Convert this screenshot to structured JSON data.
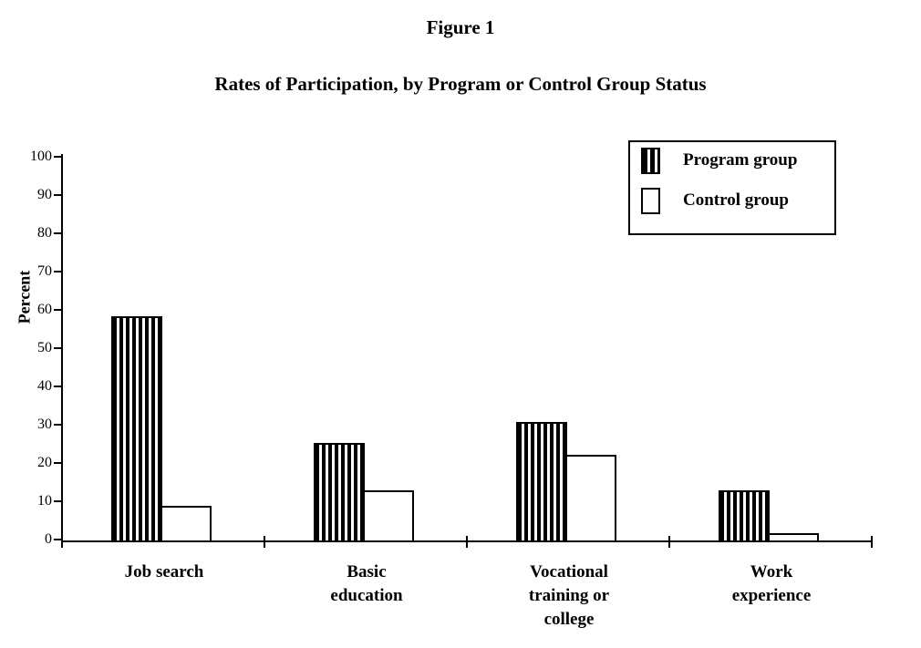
{
  "figure": {
    "title": "Figure 1",
    "subtitle": "Rates of Participation, by Program or Control Group Status"
  },
  "chart_data": {
    "type": "bar",
    "title": "Figure 1",
    "subtitle": "Rates of Participation, by Program or Control Group Status",
    "xlabel": "",
    "ylabel": "Percent",
    "ylim": [
      0,
      100
    ],
    "ytick_step": 10,
    "grid": false,
    "legend_position": "top-right",
    "categories": [
      "Job search",
      "Basic education",
      "Vocational training or college",
      "Work experience"
    ],
    "category_label_lines": [
      [
        "Job search"
      ],
      [
        "Basic",
        "education"
      ],
      [
        "Vocational",
        "training or",
        "college"
      ],
      [
        "Work",
        "experience"
      ]
    ],
    "series": [
      {
        "name": "Program group",
        "style": "vertical-stripes",
        "values": [
          58.5,
          25.5,
          31,
          13
        ]
      },
      {
        "name": "Control group",
        "style": "white",
        "values": [
          9,
          13,
          22.5,
          2
        ]
      }
    ],
    "colors": {
      "bar_border": "#000000",
      "stripe_fill": "#000000",
      "control_fill": "#ffffff",
      "text": "#000000",
      "background": "#ffffff"
    }
  }
}
